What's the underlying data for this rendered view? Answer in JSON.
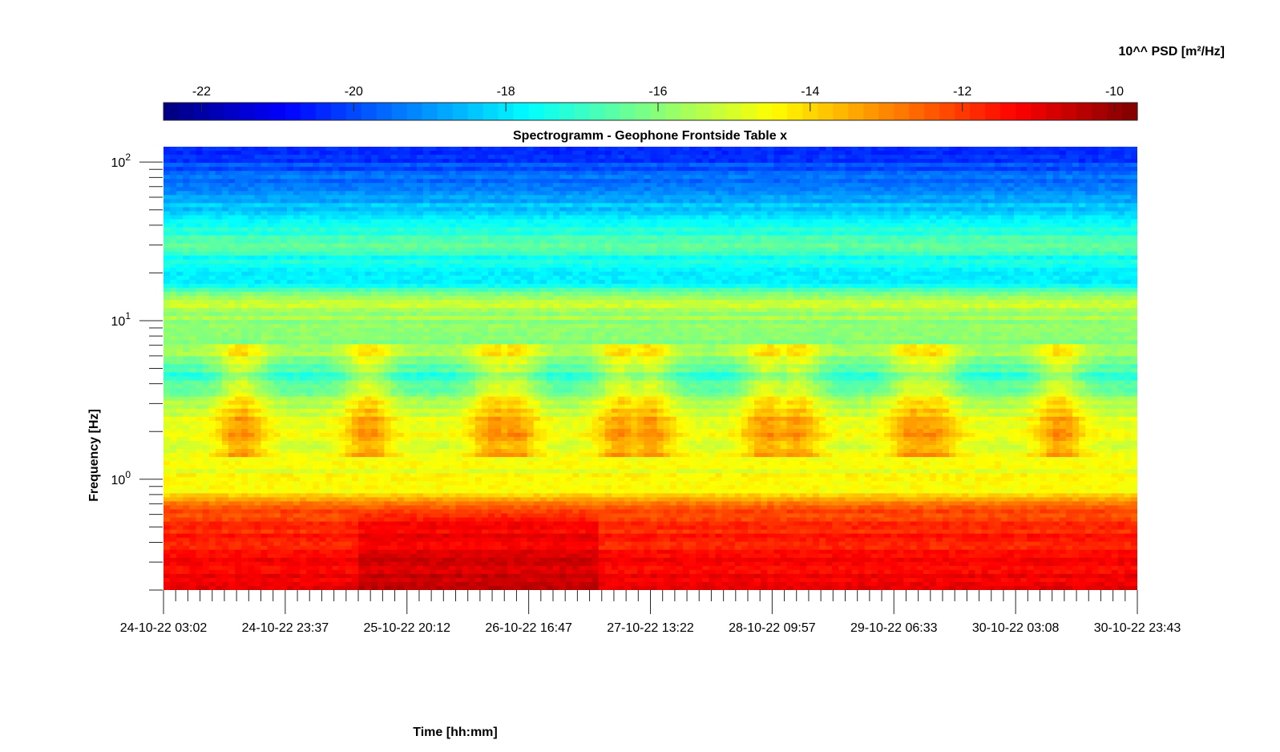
{
  "chart_data": {
    "type": "heatmap",
    "title": "Spectrogramm - Geophone Frontside Table x",
    "xlabel": "Time [hh:mm]",
    "ylabel": "Frequency [Hz]",
    "x_ticks": [
      "24-10-22 03:02",
      "24-10-22 23:37",
      "25-10-22 20:12",
      "26-10-22 16:47",
      "27-10-22 13:22",
      "28-10-22 09:57",
      "29-10-22 06:33",
      "30-10-22 03:08",
      "30-10-22 23:43"
    ],
    "y_scale": "log",
    "y_range": [
      0.2,
      125
    ],
    "y_ticks": [
      {
        "value": 1,
        "base": "10",
        "exp": "0"
      },
      {
        "value": 10,
        "base": "10",
        "exp": "1"
      },
      {
        "value": 100,
        "base": "10",
        "exp": "2"
      }
    ],
    "colorbar": {
      "label": "10^^ PSD [m²/Hz]",
      "colormap": "jet",
      "range": [
        -22.5,
        -9.7
      ],
      "ticks": [
        "-22",
        "-20",
        "-18",
        "-16",
        "-14",
        "-12",
        "-10"
      ],
      "tick_values": [
        -22,
        -20,
        -18,
        -16,
        -14,
        -12,
        -10
      ],
      "orientation": "horizontal",
      "position": "top"
    },
    "psd_profile": {
      "frequency_hz": [
        0.2,
        0.3,
        0.5,
        0.7,
        0.8,
        1.0,
        1.5,
        2.2,
        3.0,
        4.5,
        5.5,
        6.2,
        8.0,
        11.5,
        12.5,
        14.0,
        17.0,
        25.0,
        30.0,
        40.0,
        55.0,
        80.0,
        125.0
      ],
      "log10_psd": [
        -10.8,
        -11.4,
        -11.8,
        -12.6,
        -14.3,
        -14.6,
        -14.9,
        -14.7,
        -15.6,
        -17.2,
        -16.3,
        -15.8,
        -16.1,
        -15.6,
        -15.1,
        -15.9,
        -17.8,
        -17.5,
        -16.5,
        -17.6,
        -18.6,
        -19.6,
        -20.5
      ]
    }
  }
}
